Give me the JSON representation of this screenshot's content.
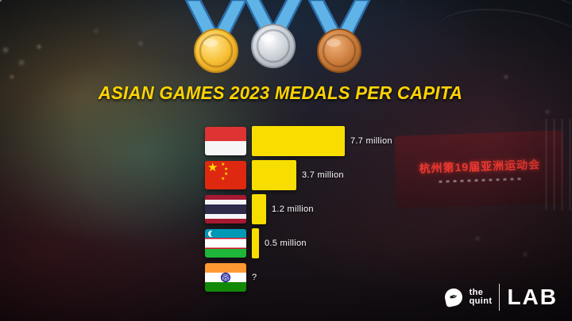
{
  "title": "ASIAN GAMES 2023 MEDALS PER CAPITA",
  "chart_data": {
    "type": "bar",
    "orientation": "horizontal",
    "title": "ASIAN GAMES 2023 MEDALS PER CAPITA",
    "categories": [
      "Indonesia",
      "China",
      "Thailand",
      "Uzbekistan",
      "India"
    ],
    "values": [
      7.7,
      3.7,
      1.2,
      0.5,
      null
    ],
    "value_labels": [
      "7.7 million",
      "3.7 million",
      "1.2 million",
      "0.5 million",
      "?"
    ],
    "unit": "million",
    "bar_color": "#F8DE00",
    "xlim": [
      0,
      7.7
    ],
    "grid": false,
    "legend": "none"
  },
  "medals": {
    "gold_color": "#F2B32B",
    "silver_color": "#C9CED6",
    "bronze_color": "#C87C3B",
    "ribbon_color": "#5FB3E6"
  },
  "background": {
    "sign_text": "杭州第19届亚洲运动会"
  },
  "branding": {
    "publisher_line1": "the",
    "publisher_line2": "quint",
    "product": "LAB"
  },
  "accent_colors": {
    "title_yellow": "#FFD400"
  }
}
